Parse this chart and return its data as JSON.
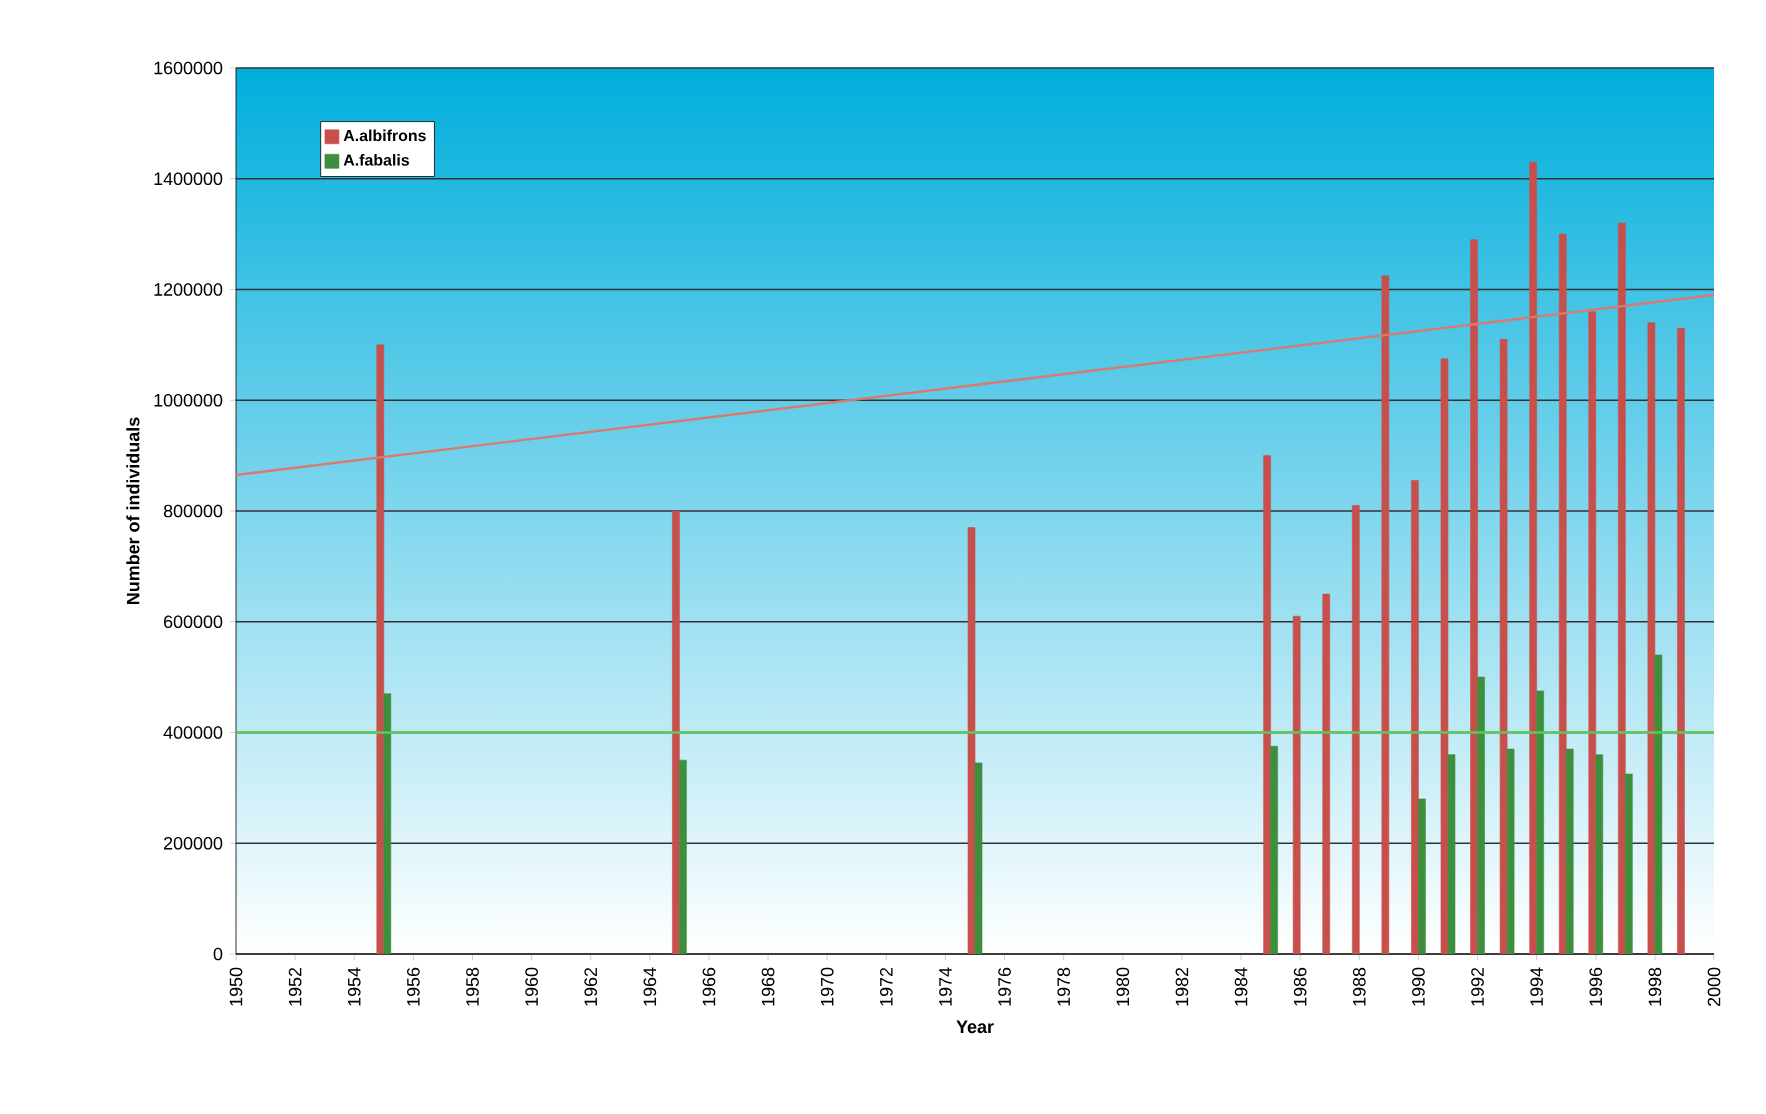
{
  "chart_data": {
    "type": "bar",
    "xlabel": "Year",
    "ylabel": "Number of individuals",
    "xlim": [
      1950,
      2000
    ],
    "xticks": [
      1950,
      1952,
      1954,
      1956,
      1958,
      1960,
      1962,
      1964,
      1966,
      1968,
      1970,
      1972,
      1974,
      1976,
      1978,
      1980,
      1982,
      1984,
      1986,
      1988,
      1990,
      1992,
      1994,
      1996,
      1998,
      2000
    ],
    "ylim": [
      0,
      1600000
    ],
    "yticks": [
      0,
      200000,
      400000,
      600000,
      800000,
      1000000,
      1200000,
      1400000,
      1600000
    ],
    "grid": "y",
    "legend": "top left",
    "series": [
      {
        "name": "A.albifrons",
        "color": "#c8504c",
        "x": [
          1955,
          1965,
          1975,
          1985,
          1986,
          1987,
          1988,
          1989,
          1990,
          1991,
          1992,
          1993,
          1994,
          1995,
          1996,
          1997,
          1998,
          1999
        ],
        "values": [
          1100000,
          800000,
          770000,
          900000,
          610000,
          650000,
          810000,
          1225000,
          855000,
          1075000,
          1290000,
          1110000,
          1430000,
          1300000,
          1160000,
          1320000,
          1140000,
          1130000
        ]
      },
      {
        "name": "A.fabalis",
        "color": "#3d8f3d",
        "x": [
          1955,
          1965,
          1975,
          1985,
          1990,
          1991,
          1992,
          1993,
          1994,
          1995,
          1996,
          1997,
          1998
        ],
        "values": [
          470000,
          350000,
          345000,
          375000,
          280000,
          360000,
          500000,
          370000,
          475000,
          370000,
          360000,
          325000,
          540000
        ]
      },
      {
        "type": "line",
        "color": "#d87a70",
        "x": [
          1950,
          2000
        ],
        "values": [
          865000,
          1190000
        ]
      },
      {
        "type": "line",
        "color": "#5cc85c",
        "x": [
          1950,
          2000
        ],
        "values": [
          400000,
          400000
        ]
      }
    ]
  }
}
